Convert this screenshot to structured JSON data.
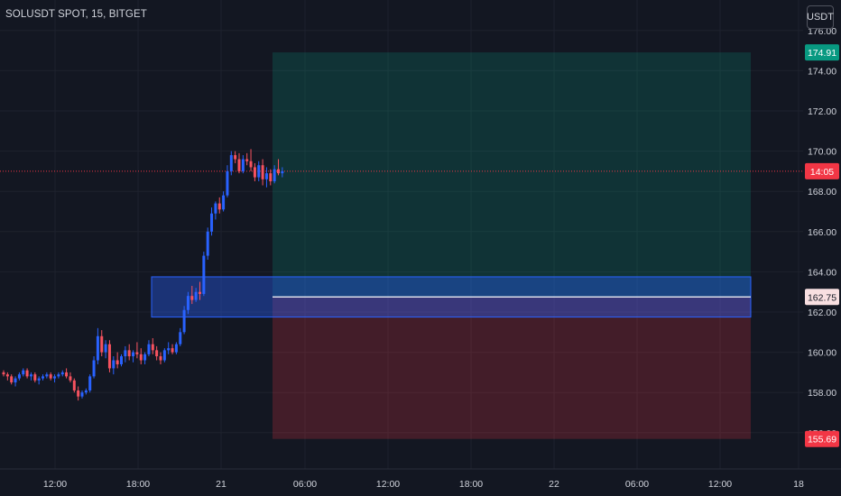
{
  "header": {
    "symbol_title": "SOLUSDT SPOT, 15, BITGET",
    "currency_button": "USDT"
  },
  "price_axis": {
    "ticks": [
      "174.00",
      "172.00",
      "170.00",
      "168.00",
      "166.00",
      "164.00",
      "162.00",
      "160.00",
      "158.00"
    ],
    "partial_ticks": [
      "176.00",
      "156.00"
    ],
    "badges": {
      "target": {
        "label": "174.91",
        "value": 174.91,
        "color": "#089981"
      },
      "last": {
        "label": "14:05",
        "value": 169.0,
        "color": "#f23645"
      },
      "entry": {
        "label": "162.75",
        "value": 162.75,
        "color": "#f8dfe1"
      },
      "stop": {
        "label": "155.69",
        "value": 155.69,
        "color": "#f23645"
      }
    }
  },
  "time_axis": {
    "ticks": [
      "12:00",
      "18:00",
      "21",
      "06:00",
      "12:00",
      "18:00",
      "22",
      "06:00",
      "12:00",
      "18"
    ]
  },
  "zones": {
    "demand": {
      "top": 163.75,
      "bottom": 161.75,
      "color": "#2962ff"
    },
    "profit": {
      "top": 174.91,
      "bottom": 162.75,
      "color": "#089981"
    },
    "loss": {
      "top": 162.75,
      "bottom": 155.69,
      "color": "#f23645"
    }
  },
  "colors": {
    "background": "#131722",
    "grid": "#1e222d",
    "up": "#2962ff",
    "down": "#f7525f",
    "text": "#d1d4dc"
  },
  "candles": [
    [
      159.0,
      159.1,
      158.8,
      158.9
    ],
    [
      158.9,
      159.0,
      158.6,
      158.8
    ],
    [
      158.8,
      158.9,
      158.4,
      158.5
    ],
    [
      158.5,
      158.8,
      158.3,
      158.7
    ],
    [
      158.7,
      159.0,
      158.6,
      158.9
    ],
    [
      158.9,
      159.2,
      158.8,
      159.1
    ],
    [
      159.1,
      159.2,
      158.7,
      158.8
    ],
    [
      158.8,
      159.0,
      158.6,
      158.9
    ],
    [
      158.9,
      159.0,
      158.5,
      158.6
    ],
    [
      158.6,
      158.8,
      158.4,
      158.7
    ],
    [
      158.7,
      158.9,
      158.6,
      158.8
    ],
    [
      158.8,
      159.0,
      158.7,
      158.9
    ],
    [
      158.9,
      159.0,
      158.6,
      158.7
    ],
    [
      158.7,
      158.9,
      158.5,
      158.8
    ],
    [
      158.8,
      159.0,
      158.7,
      158.9
    ],
    [
      158.9,
      159.1,
      158.8,
      159.0
    ],
    [
      159.0,
      159.2,
      158.7,
      158.8
    ],
    [
      158.8,
      159.0,
      158.5,
      158.6
    ],
    [
      158.6,
      158.7,
      158.0,
      158.1
    ],
    [
      158.1,
      158.3,
      157.6,
      157.8
    ],
    [
      157.8,
      158.1,
      157.7,
      158.0
    ],
    [
      158.0,
      158.2,
      157.9,
      158.1
    ],
    [
      158.1,
      158.9,
      158.0,
      158.8
    ],
    [
      158.8,
      159.8,
      158.7,
      159.6
    ],
    [
      159.6,
      161.2,
      159.4,
      160.8
    ],
    [
      160.8,
      161.1,
      159.8,
      160.0
    ],
    [
      160.0,
      160.6,
      159.7,
      160.4
    ],
    [
      160.4,
      160.6,
      159.0,
      159.2
    ],
    [
      159.2,
      159.8,
      158.9,
      159.6
    ],
    [
      159.6,
      160.0,
      159.2,
      159.4
    ],
    [
      159.4,
      159.9,
      159.3,
      159.8
    ],
    [
      159.8,
      160.3,
      159.5,
      160.1
    ],
    [
      160.1,
      160.4,
      159.6,
      159.8
    ],
    [
      159.8,
      160.1,
      159.5,
      160.0
    ],
    [
      160.0,
      160.5,
      159.7,
      159.9
    ],
    [
      159.9,
      160.2,
      159.4,
      159.6
    ],
    [
      159.6,
      160.0,
      159.4,
      159.9
    ],
    [
      159.9,
      160.6,
      159.8,
      160.4
    ],
    [
      160.4,
      160.7,
      159.9,
      160.1
    ],
    [
      160.1,
      160.3,
      159.6,
      159.8
    ],
    [
      159.8,
      160.0,
      159.4,
      159.6
    ],
    [
      159.6,
      160.2,
      159.5,
      160.1
    ],
    [
      160.1,
      160.5,
      159.9,
      160.2
    ],
    [
      160.2,
      160.4,
      159.9,
      160.0
    ],
    [
      160.0,
      160.5,
      159.9,
      160.4
    ],
    [
      160.4,
      161.2,
      160.3,
      161.0
    ],
    [
      161.0,
      162.3,
      160.9,
      162.1
    ],
    [
      162.1,
      163.0,
      161.9,
      162.8
    ],
    [
      162.8,
      163.3,
      162.4,
      162.6
    ],
    [
      162.6,
      163.2,
      162.5,
      163.0
    ],
    [
      163.0,
      163.5,
      162.6,
      162.9
    ],
    [
      162.9,
      165.0,
      162.8,
      164.8
    ],
    [
      164.8,
      166.2,
      164.6,
      166.0
    ],
    [
      166.0,
      167.2,
      165.8,
      166.9
    ],
    [
      166.9,
      167.5,
      166.6,
      167.4
    ],
    [
      167.4,
      167.7,
      166.9,
      167.1
    ],
    [
      167.1,
      168.0,
      167.0,
      167.8
    ],
    [
      167.8,
      169.3,
      167.7,
      169.0
    ],
    [
      169.0,
      170.0,
      168.8,
      169.8
    ],
    [
      169.8,
      170.0,
      169.4,
      169.6
    ],
    [
      169.6,
      169.9,
      168.9,
      169.0
    ],
    [
      169.0,
      169.8,
      168.9,
      169.6
    ],
    [
      169.6,
      169.9,
      169.3,
      169.5
    ],
    [
      169.5,
      170.1,
      169.0,
      169.2
    ],
    [
      169.2,
      169.4,
      168.5,
      168.7
    ],
    [
      168.7,
      169.5,
      168.5,
      169.3
    ],
    [
      169.3,
      169.6,
      168.3,
      168.6
    ],
    [
      168.6,
      169.2,
      168.2,
      168.9
    ],
    [
      168.9,
      169.1,
      168.3,
      168.5
    ],
    [
      168.5,
      169.3,
      168.4,
      169.1
    ],
    [
      169.1,
      169.6,
      168.8,
      168.9
    ],
    [
      168.9,
      169.2,
      168.7,
      169.0
    ]
  ]
}
